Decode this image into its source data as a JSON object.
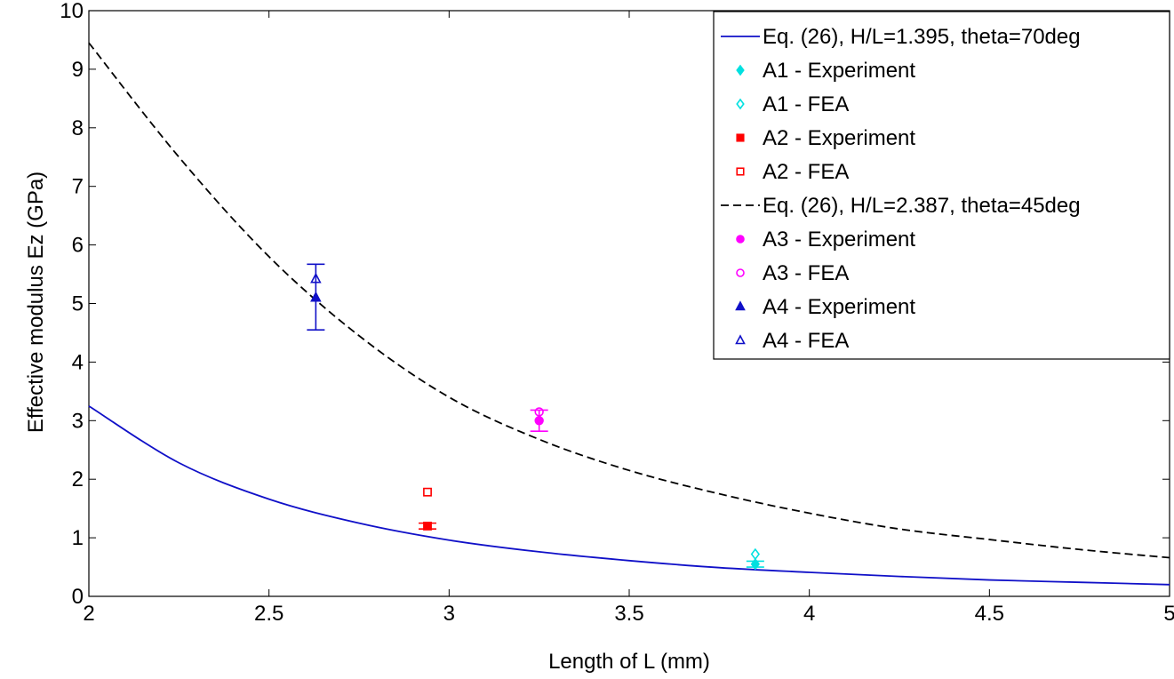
{
  "chart_data": {
    "type": "scatter",
    "title": "",
    "xlabel": "Length of L (mm)",
    "ylabel": "Effective modulus Ez (GPa)",
    "xlim": [
      2,
      5
    ],
    "ylim": [
      0,
      10
    ],
    "xticks": [
      2,
      2.5,
      3,
      3.5,
      4,
      4.5,
      5
    ],
    "xtick_labels": [
      "2",
      "2.5",
      "3",
      "3.5",
      "4",
      "4.5",
      "5"
    ],
    "yticks": [
      0,
      1,
      2,
      3,
      4,
      5,
      6,
      7,
      8,
      9,
      10
    ],
    "ytick_labels": [
      "0",
      "1",
      "2",
      "3",
      "4",
      "5",
      "6",
      "7",
      "8",
      "9",
      "10"
    ],
    "grid": false,
    "legend_position": "top-right",
    "series": [
      {
        "name": "Eq. (26), H/L=1.395, theta=70deg",
        "kind": "line",
        "style": "solid",
        "color": "#1010c8",
        "x": [
          2.0,
          2.25,
          2.5,
          2.75,
          3.0,
          3.25,
          3.5,
          3.75,
          4.0,
          4.25,
          4.5,
          4.75,
          5.0
        ],
        "y": [
          3.25,
          2.28,
          1.66,
          1.25,
          0.96,
          0.76,
          0.61,
          0.49,
          0.41,
          0.34,
          0.28,
          0.24,
          0.2
        ]
      },
      {
        "name": "A1 - Experiment",
        "kind": "marker",
        "marker": "diamond-filled",
        "color": "#00e0e0",
        "x": [
          3.85
        ],
        "y": [
          0.55
        ],
        "error_low": [
          0.5
        ],
        "error_high": [
          0.6
        ]
      },
      {
        "name": "A1 - FEA",
        "kind": "marker",
        "marker": "diamond-open",
        "color": "#00e0e0",
        "x": [
          3.85
        ],
        "y": [
          0.72
        ]
      },
      {
        "name": "A2 - Experiment",
        "kind": "marker",
        "marker": "square-filled",
        "color": "#ff0000",
        "x": [
          2.94
        ],
        "y": [
          1.2
        ],
        "error_low": [
          1.15
        ],
        "error_high": [
          1.25
        ]
      },
      {
        "name": "A2 - FEA",
        "kind": "marker",
        "marker": "square-open",
        "color": "#ff0000",
        "x": [
          2.94
        ],
        "y": [
          1.78
        ]
      },
      {
        "name": "Eq. (26), H/L=2.387, theta=45deg",
        "kind": "line",
        "style": "dashed",
        "color": "#000000",
        "x": [
          2.0,
          2.25,
          2.5,
          2.75,
          3.0,
          3.25,
          3.5,
          3.75,
          4.0,
          4.25,
          4.5,
          4.75,
          5.0
        ],
        "y": [
          9.45,
          7.5,
          5.8,
          4.45,
          3.4,
          2.68,
          2.15,
          1.75,
          1.42,
          1.15,
          0.97,
          0.8,
          0.66
        ]
      },
      {
        "name": "A3 - Experiment",
        "kind": "marker",
        "marker": "circle-filled",
        "color": "#ff00ff",
        "x": [
          3.25
        ],
        "y": [
          3.0
        ],
        "error_low": [
          2.82
        ],
        "error_high": [
          3.18
        ]
      },
      {
        "name": "A3 - FEA",
        "kind": "marker",
        "marker": "circle-open",
        "color": "#ff00ff",
        "x": [
          3.25
        ],
        "y": [
          3.15
        ]
      },
      {
        "name": "A4 - Experiment",
        "kind": "marker",
        "marker": "triangle-filled",
        "color": "#1010c8",
        "x": [
          2.63
        ],
        "y": [
          5.1
        ],
        "error_low": [
          4.55
        ],
        "error_high": [
          5.67
        ]
      },
      {
        "name": "A4 - FEA",
        "kind": "marker",
        "marker": "triangle-open",
        "color": "#1010c8",
        "x": [
          2.63
        ],
        "y": [
          5.42
        ]
      }
    ]
  }
}
